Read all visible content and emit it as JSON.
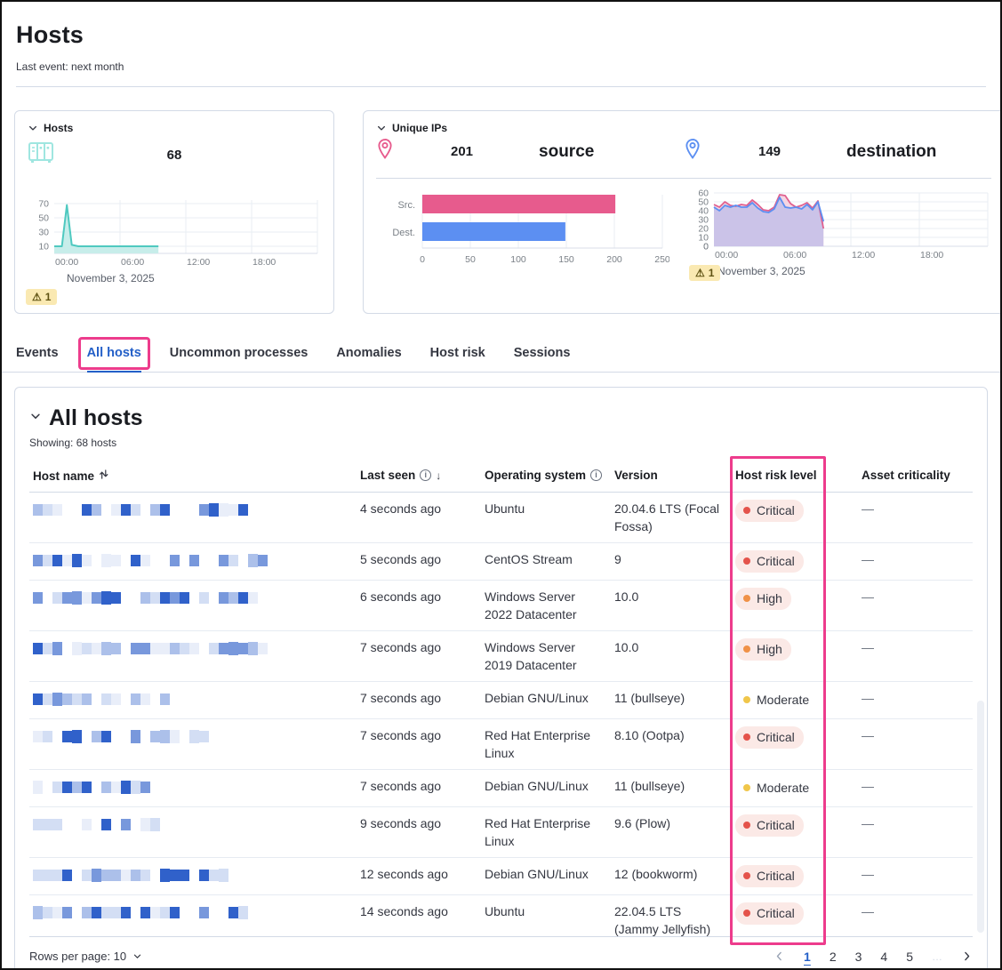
{
  "page": {
    "title": "Hosts",
    "subtitle": "Last event: next month"
  },
  "hosts_card": {
    "title": "Hosts",
    "count": "68",
    "warning_count": "1",
    "date_label": "November 3, 2025",
    "chart_data": {
      "type": "area",
      "x_hours": [
        0,
        0.7,
        1.15,
        1.6,
        2.2,
        3,
        4,
        5,
        6,
        7,
        8,
        9,
        9.5
      ],
      "values": [
        10,
        10,
        68,
        12,
        10,
        10,
        10,
        10,
        10,
        10,
        10,
        10,
        10
      ],
      "ylim": [
        0,
        75
      ],
      "yticks": [
        10,
        30,
        50,
        70
      ],
      "xlim_hours": [
        0,
        24
      ],
      "xticks": [
        {
          "h": 0,
          "label": "00:00"
        },
        {
          "h": 6,
          "label": "06:00"
        },
        {
          "h": 12,
          "label": "12:00"
        },
        {
          "h": 18,
          "label": "18:00"
        }
      ],
      "line_color": "#4fc9c0",
      "fill_color": "#c7edea"
    }
  },
  "unique_ips_card": {
    "title": "Unique IPs",
    "source": {
      "count": "201",
      "label": "source",
      "color": "#e75b8d"
    },
    "destination": {
      "count": "149",
      "label": "destination",
      "color": "#5c8ff2"
    },
    "warning_count": "1",
    "date_label": "November 3, 2025",
    "bar_chart_data": {
      "type": "bar",
      "categories": [
        "Src.",
        "Dest."
      ],
      "values": [
        201,
        149
      ],
      "colors": [
        "#e75b8d",
        "#5c8ff2"
      ],
      "xlim": [
        0,
        250
      ],
      "xticks": [
        0,
        50,
        100,
        150,
        200,
        250
      ]
    },
    "line_chart_data": {
      "type": "line",
      "x_step_hours": 0.48,
      "series": [
        {
          "name": "source",
          "color": "#e0608f",
          "fill": "#f3cfdd",
          "values": [
            47,
            44,
            50,
            46,
            45,
            47,
            46,
            52,
            47,
            41,
            40,
            44,
            58,
            57,
            48,
            44,
            46,
            49,
            43,
            51,
            20
          ]
        },
        {
          "name": "destination",
          "color": "#5c8ff2",
          "fill": "#c8c2e8",
          "values": [
            44,
            40,
            46,
            44,
            46,
            44,
            44,
            49,
            43,
            39,
            38,
            42,
            55,
            44,
            43,
            44,
            42,
            47,
            41,
            50,
            28
          ]
        }
      ],
      "ylim": [
        0,
        60
      ],
      "yticks": [
        0,
        10,
        20,
        30,
        40,
        50,
        60
      ],
      "xlim_hours": [
        0,
        24
      ],
      "xticks": [
        {
          "h": 0,
          "label": "00:00"
        },
        {
          "h": 6,
          "label": "06:00"
        },
        {
          "h": 12,
          "label": "12:00"
        },
        {
          "h": 18,
          "label": "18:00"
        }
      ]
    }
  },
  "tabs": [
    {
      "label": "Events",
      "active": false,
      "annotated": false
    },
    {
      "label": "All hosts",
      "active": true,
      "annotated": true
    },
    {
      "label": "Uncommon processes",
      "active": false,
      "annotated": false
    },
    {
      "label": "Anomalies",
      "active": false,
      "annotated": false
    },
    {
      "label": "Host risk",
      "active": false,
      "annotated": false
    },
    {
      "label": "Sessions",
      "active": false,
      "annotated": false
    }
  ],
  "all_hosts": {
    "title": "All hosts",
    "showing": "Showing: 68 hosts",
    "columns": [
      {
        "label": "Host name",
        "icons": [
          "sort"
        ]
      },
      {
        "label": "Last seen",
        "icons": [
          "info",
          "arrow-down"
        ]
      },
      {
        "label": "Operating system",
        "icons": [
          "info"
        ]
      },
      {
        "label": "Version",
        "icons": []
      },
      {
        "label": "Host risk level",
        "icons": [],
        "annotated": true
      },
      {
        "label": "Asset criticality",
        "icons": []
      }
    ],
    "rows": [
      {
        "last_seen": "4 seconds ago",
        "os": "Ubuntu",
        "version": "20.04.6 LTS (Focal Fossa)",
        "risk": "Critical",
        "asset_criticality": "—"
      },
      {
        "last_seen": "5 seconds ago",
        "os": "CentOS Stream",
        "version": "9",
        "risk": "Critical",
        "asset_criticality": "—"
      },
      {
        "last_seen": "6 seconds ago",
        "os": "Windows Server 2022 Datacenter",
        "version": "10.0",
        "risk": "High",
        "asset_criticality": "—"
      },
      {
        "last_seen": "7 seconds ago",
        "os": "Windows Server 2019 Datacenter",
        "version": "10.0",
        "risk": "High",
        "asset_criticality": "—"
      },
      {
        "last_seen": "7 seconds ago",
        "os": "Debian GNU/Linux",
        "version": "11 (bullseye)",
        "risk": "Moderate",
        "asset_criticality": "—"
      },
      {
        "last_seen": "7 seconds ago",
        "os": "Red Hat Enterprise Linux",
        "version": "8.10 (Ootpa)",
        "risk": "Critical",
        "asset_criticality": "—"
      },
      {
        "last_seen": "7 seconds ago",
        "os": "Debian GNU/Linux",
        "version": "11 (bullseye)",
        "risk": "Moderate",
        "asset_criticality": "—"
      },
      {
        "last_seen": "9 seconds ago",
        "os": "Red Hat Enterprise Linux",
        "version": "9.6 (Plow)",
        "risk": "Critical",
        "asset_criticality": "—"
      },
      {
        "last_seen": "12 seconds ago",
        "os": "Debian GNU/Linux",
        "version": "12 (bookworm)",
        "risk": "Critical",
        "asset_criticality": "—"
      },
      {
        "last_seen": "14 seconds ago",
        "os": "Ubuntu",
        "version": "22.04.5 LTS (Jammy Jellyfish)",
        "risk": "Critical",
        "asset_criticality": "—"
      }
    ],
    "risk_styles": {
      "Critical": {
        "dot": "#e4534b",
        "pill": true
      },
      "High": {
        "dot": "#f09147",
        "pill": true
      },
      "Moderate": {
        "dot": "#f0c64a",
        "pill": false
      }
    },
    "footer": {
      "rows_per_page_label": "Rows per page: 10",
      "pages": [
        "1",
        "2",
        "3",
        "4",
        "5"
      ],
      "current_page": "1",
      "ellipsis": "…"
    }
  },
  "colors": {
    "annotation_pink": "#ed3c8c",
    "accent_blue": "#2460c8",
    "teal_icon": "#9fe6e0",
    "warning_bg": "#fae9b2"
  }
}
